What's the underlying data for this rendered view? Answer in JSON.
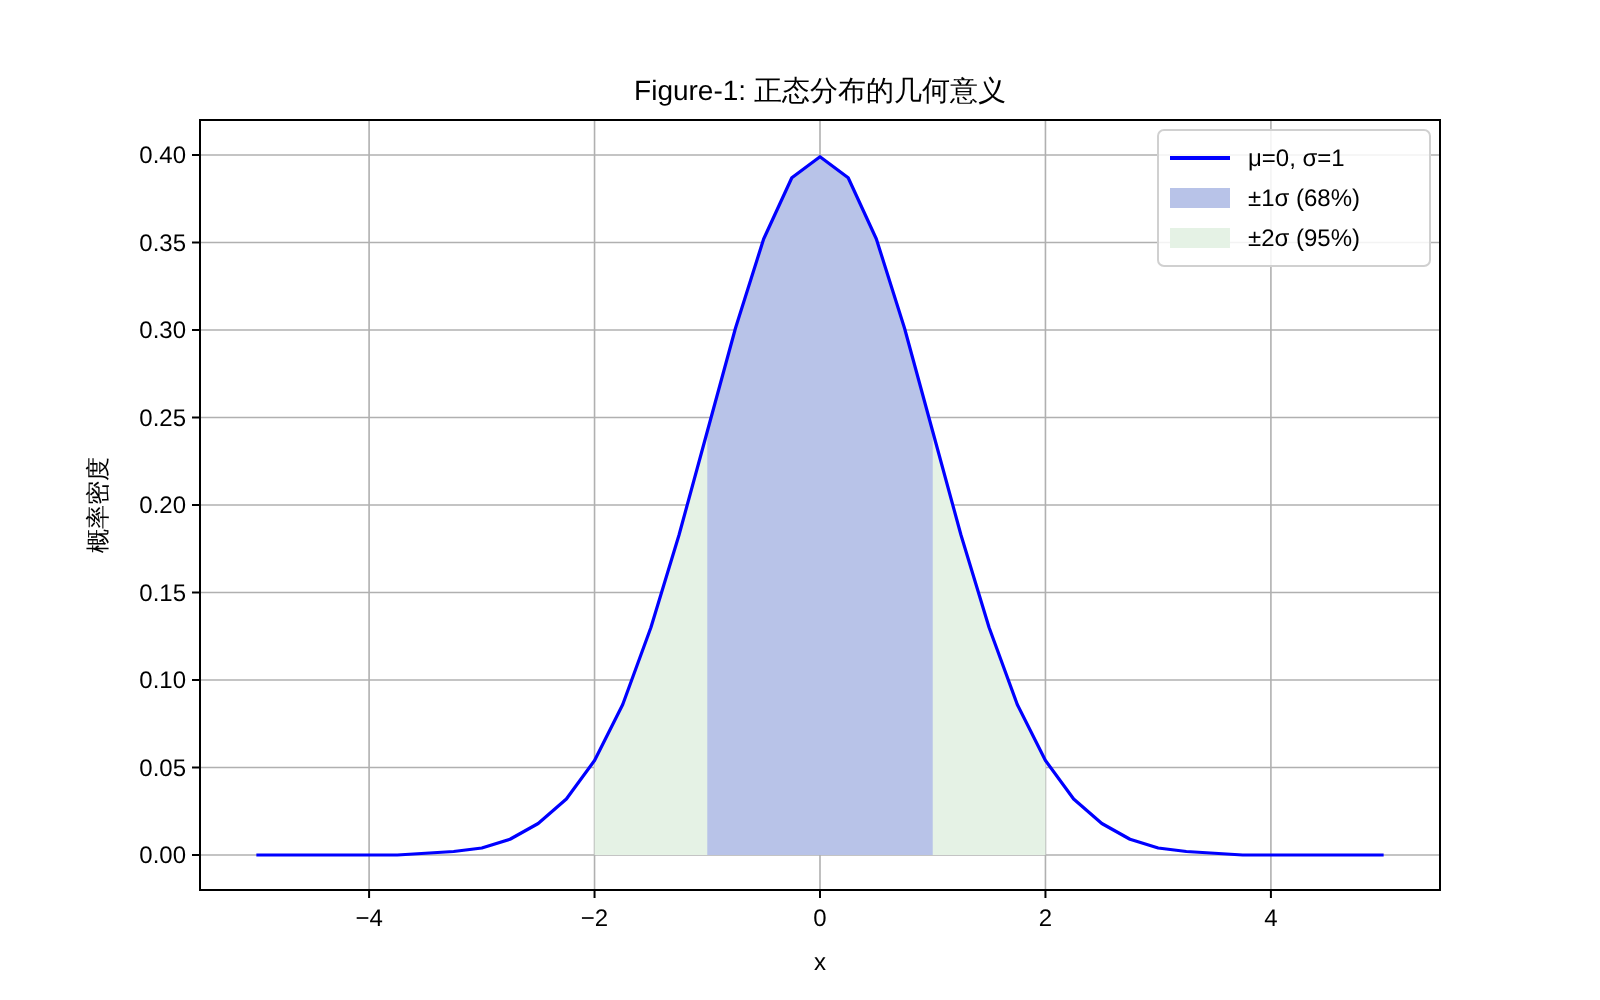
{
  "chart_data": {
    "type": "line",
    "title": "Figure-1: 正态分布的几何意义",
    "xlabel": "x",
    "ylabel": "概率密度",
    "xlim": [
      -5.5,
      5.5
    ],
    "ylim": [
      -0.02,
      0.42
    ],
    "xticks": [
      {
        "value": -4,
        "label": "−4"
      },
      {
        "value": -2,
        "label": "−2"
      },
      0,
      2,
      4
    ],
    "yticks": [
      {
        "value": 0,
        "label": "0.00"
      },
      {
        "value": 0.05,
        "label": "0.05"
      },
      {
        "value": 0.1,
        "label": "0.10"
      },
      {
        "value": 0.15,
        "label": "0.15"
      },
      {
        "value": 0.2,
        "label": "0.20"
      },
      {
        "value": 0.25,
        "label": "0.25"
      },
      {
        "value": 0.3,
        "label": "0.30"
      },
      {
        "value": 0.35,
        "label": "0.35"
      },
      {
        "value": 0.4,
        "label": "0.40"
      }
    ],
    "grid": true,
    "legend": "top right",
    "marker": "none",
    "line_style": "solid",
    "series": [
      {
        "name": "μ=0, σ=1",
        "color": "#0000ff",
        "x": [
          -5,
          -4.75,
          -4.5,
          -4.25,
          -4,
          -3.75,
          -3.5,
          -3.25,
          -3,
          -2.75,
          -2.5,
          -2.25,
          -2,
          -1.75,
          -1.5,
          -1.25,
          -1,
          -0.75,
          -0.5,
          -0.25,
          0,
          0.25,
          0.5,
          0.75,
          1,
          1.25,
          1.5,
          1.75,
          2,
          2.25,
          2.5,
          2.75,
          3,
          3.25,
          3.5,
          3.75,
          4,
          4.25,
          4.5,
          4.75,
          5
        ],
        "values": [
          0,
          0,
          0,
          0,
          0,
          0,
          0.001,
          0.002,
          0.004,
          0.009,
          0.018,
          0.032,
          0.054,
          0.086,
          0.13,
          0.183,
          0.242,
          0.301,
          0.352,
          0.387,
          0.399,
          0.387,
          0.352,
          0.301,
          0.242,
          0.183,
          0.13,
          0.086,
          0.054,
          0.032,
          0.018,
          0.009,
          0.004,
          0.002,
          0.001,
          0,
          0,
          0,
          0,
          0,
          0
        ]
      },
      {
        "name": "±1σ (68%)",
        "type": "area",
        "color": "#b8c3e8",
        "x": [
          -1,
          -0.75,
          -0.5,
          -0.25,
          0,
          0.25,
          0.5,
          0.75,
          1
        ],
        "values": [
          0.242,
          0.301,
          0.352,
          0.387,
          0.399,
          0.387,
          0.352,
          0.301,
          0.242
        ]
      },
      {
        "name": "±2σ (95%)",
        "type": "area",
        "color": "#e5f2e5",
        "x": [
          -2,
          -1.75,
          -1.5,
          -1.25,
          -1,
          -0.75,
          -0.5,
          -0.25,
          0,
          0.25,
          0.5,
          0.75,
          1,
          1.25,
          1.5,
          1.75,
          2
        ],
        "values": [
          0.054,
          0.086,
          0.13,
          0.183,
          0.242,
          null,
          null,
          null,
          null,
          null,
          null,
          null,
          0.242,
          0.183,
          0.13,
          0.086,
          0.054
        ]
      }
    ]
  }
}
